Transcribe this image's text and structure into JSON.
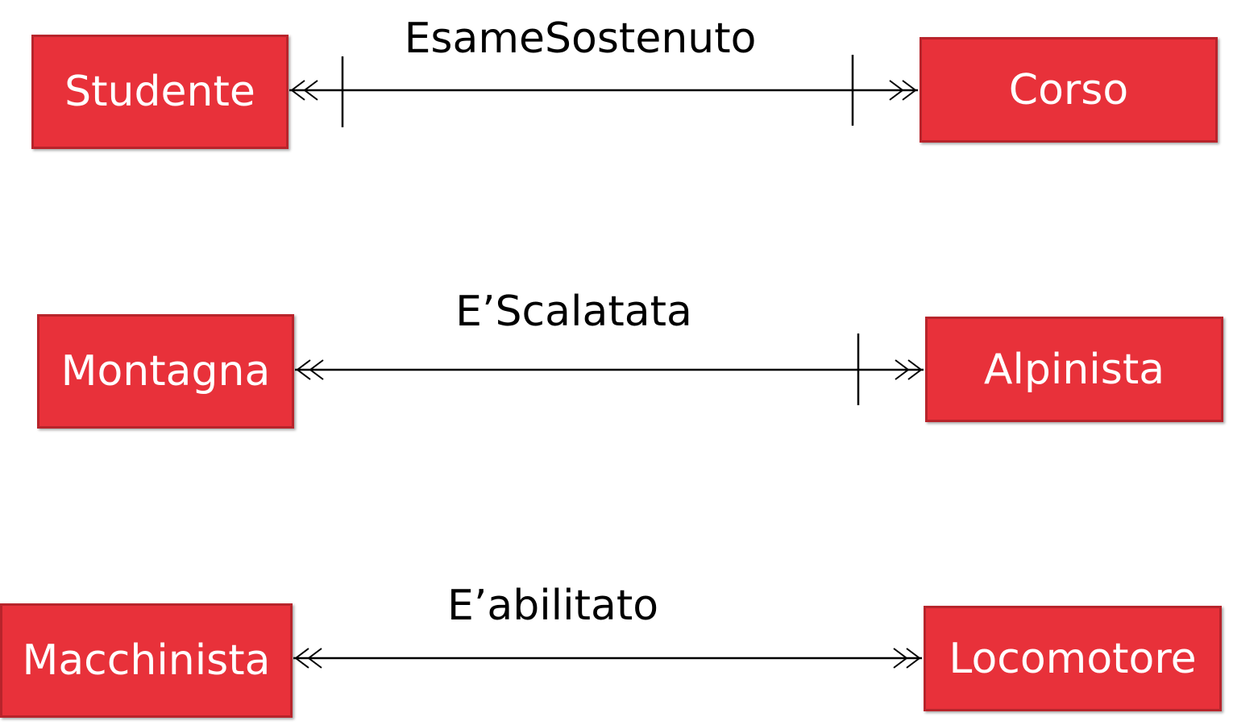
{
  "relationships": [
    {
      "label": "EsameSostenuto",
      "left": "Studente",
      "right": "Corso",
      "left_bar": true,
      "right_bar": true,
      "left_arrow": "double",
      "right_arrow": "double"
    },
    {
      "label": "E’Scalatata",
      "left": "Montagna",
      "right": "Alpinista",
      "left_bar": false,
      "right_bar": true,
      "left_arrow": "double",
      "right_arrow": "double"
    },
    {
      "label": "E’abilitato",
      "left": "Macchinista",
      "right": "Locomotore",
      "left_bar": false,
      "right_bar": false,
      "left_arrow": "double",
      "right_arrow": "double"
    }
  ],
  "colors": {
    "entity_fill": "#e8313a",
    "entity_border": "#b8242b",
    "line": "#000000"
  }
}
